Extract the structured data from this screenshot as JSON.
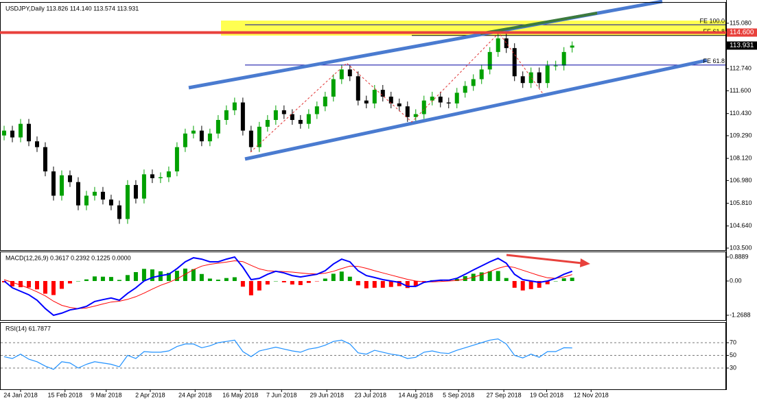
{
  "chart_data": [
    {
      "type": "candlestick",
      "legend": "USDJPY,Daily  113.826 114.140 113.574 113.931",
      "xlim": [
        -0.5,
        87.7
      ],
      "xticks": [
        {
          "value": 2,
          "label": "24 Jan 2018"
        },
        {
          "value": 7.4,
          "label": "15 Feb 2018"
        },
        {
          "value": 12.4,
          "label": "9 Mar 2018"
        },
        {
          "value": 17.75,
          "label": "2 Apr 2018"
        },
        {
          "value": 23.2,
          "label": "24 Apr 2018"
        },
        {
          "value": 28.7,
          "label": "16 May 2018"
        },
        {
          "value": 33.7,
          "label": "7 Jun 2018"
        },
        {
          "value": 39.2,
          "label": "29 Jun 2018"
        },
        {
          "value": 44.5,
          "label": "23 Jul 2018"
        },
        {
          "value": 50,
          "label": "14 Aug 2018"
        },
        {
          "value": 55.2,
          "label": "5 Sep 2018"
        },
        {
          "value": 60.7,
          "label": "27 Sep 2018"
        },
        {
          "value": 65.9,
          "label": "19 Oct 2018"
        },
        {
          "value": 71.3,
          "label": "12 Nov 2018"
        }
      ],
      "ylim": [
        103.394,
        116.136
      ],
      "yticks": [
        {
          "value": 115.08,
          "label": "115.080"
        },
        {
          "value": 112.74,
          "label": "112.740"
        },
        {
          "value": 111.6,
          "label": "111.600"
        },
        {
          "value": 110.43,
          "label": "110.430"
        },
        {
          "value": 109.29,
          "label": "109.290"
        },
        {
          "value": 108.12,
          "label": "108.120"
        },
        {
          "value": 106.98,
          "label": "106.980"
        },
        {
          "value": 105.81,
          "label": "105.810"
        },
        {
          "value": 104.64,
          "label": "104.640"
        },
        {
          "value": 103.5,
          "label": "103.500"
        }
      ],
      "up_color": "#00a000",
      "down_color": "#000000",
      "open": [
        109.3,
        109.55,
        109.2,
        109.9,
        109.0,
        108.7,
        107.45,
        106.2,
        107.25,
        106.9,
        105.7,
        106.2,
        106.4,
        106.0,
        105.7,
        105.0,
        106.75,
        106.05,
        107.3,
        107.1,
        107.15,
        107.45,
        108.7,
        109.4,
        109.55,
        109.0,
        109.4,
        110.1,
        110.6,
        111.0,
        109.55,
        108.7,
        109.75,
        110.1,
        110.6,
        110.4,
        110.1,
        109.9,
        110.4,
        110.8,
        111.3,
        112.2,
        112.7,
        112.35,
        111.1,
        110.95,
        111.65,
        111.3,
        110.95,
        110.8,
        110.25,
        110.4,
        111.1,
        111.3,
        111.0,
        110.95,
        111.5,
        111.85,
        112.2,
        112.7,
        113.6,
        114.3,
        113.8,
        112.35,
        112.0,
        112.55,
        112.0,
        112.9,
        112.9,
        113.826
      ],
      "high": [
        109.8,
        109.8,
        110.15,
        110.15,
        109.25,
        108.95,
        107.7,
        107.5,
        107.5,
        107.15,
        106.45,
        106.65,
        106.65,
        106.25,
        105.95,
        107.0,
        107.0,
        107.55,
        107.55,
        107.4,
        107.7,
        108.95,
        109.65,
        109.8,
        109.8,
        109.65,
        110.35,
        110.85,
        111.25,
        111.25,
        109.8,
        110.0,
        110.35,
        110.85,
        110.85,
        110.65,
        110.35,
        110.65,
        111.05,
        111.55,
        112.45,
        112.95,
        112.95,
        112.6,
        111.35,
        111.9,
        111.9,
        111.55,
        111.2,
        111.05,
        110.65,
        111.35,
        111.55,
        111.55,
        111.25,
        111.75,
        112.1,
        112.45,
        112.95,
        113.85,
        114.55,
        114.55,
        114.05,
        112.6,
        112.8,
        112.8,
        113.15,
        113.15,
        113.85,
        114.14
      ],
      "low": [
        109.05,
        108.95,
        108.95,
        108.75,
        108.45,
        107.2,
        105.95,
        105.95,
        106.65,
        105.45,
        105.45,
        105.95,
        105.75,
        105.45,
        104.75,
        104.75,
        105.8,
        105.8,
        106.85,
        106.85,
        106.9,
        107.2,
        108.45,
        109.15,
        108.75,
        108.75,
        109.15,
        109.85,
        110.35,
        109.3,
        108.45,
        108.45,
        109.5,
        109.85,
        110.15,
        109.85,
        109.65,
        109.65,
        110.15,
        110.55,
        111.05,
        111.95,
        112.1,
        110.85,
        110.7,
        110.7,
        111.05,
        110.7,
        110.55,
        110.0,
        110.0,
        110.15,
        110.85,
        110.75,
        110.7,
        110.7,
        111.25,
        111.6,
        111.95,
        112.45,
        113.35,
        113.55,
        112.1,
        111.75,
        111.75,
        111.75,
        111.75,
        112.65,
        112.65,
        113.574
      ],
      "close": [
        109.55,
        109.2,
        109.9,
        109.0,
        108.7,
        107.45,
        106.2,
        107.25,
        106.9,
        105.7,
        106.2,
        106.4,
        106.0,
        105.7,
        105.0,
        106.75,
        106.05,
        107.3,
        107.1,
        107.15,
        107.45,
        108.7,
        109.4,
        109.55,
        109.0,
        109.4,
        110.1,
        110.6,
        111.0,
        109.55,
        108.7,
        109.75,
        110.1,
        110.6,
        110.4,
        110.1,
        109.9,
        110.4,
        110.8,
        111.3,
        112.2,
        112.7,
        112.35,
        111.1,
        110.95,
        111.65,
        111.3,
        110.95,
        110.8,
        110.25,
        110.4,
        111.1,
        111.3,
        111.0,
        110.95,
        111.5,
        111.85,
        112.2,
        112.7,
        113.6,
        114.3,
        113.8,
        112.35,
        112.0,
        112.55,
        112.0,
        112.9,
        112.9,
        113.6,
        113.931
      ],
      "levels": [
        {
          "value": 115.0,
          "label": "FE 100.0",
          "color": "#0000a0"
        },
        {
          "value": 114.45,
          "label": "FE 61.8",
          "color": "#000000"
        },
        {
          "value": 112.93,
          "label": "FE 61.8",
          "color": "#0000a0"
        }
      ],
      "price_line": {
        "value": 114.6,
        "label": "114.600",
        "color": "#e8413c"
      }
    },
    {
      "type": "macd",
      "legend": "MACD(12,26,9) 0.3617 0.2392 0.1225 0.0000",
      "ylim": [
        -1.447,
        1.0666
      ],
      "yticks": [
        0.8889,
        {
          "value": 0,
          "label": "0.00"
        },
        -1.2688
      ],
      "macd": {
        "color": "#0000ff",
        "values": [
          0.0,
          -0.25,
          -0.38,
          -0.51,
          -0.71,
          -1.02,
          -1.27,
          -1.19,
          -1.07,
          -1.02,
          -0.94,
          -0.76,
          -0.69,
          -0.63,
          -0.71,
          -0.46,
          -0.25,
          0.0,
          0.13,
          0.2,
          0.25,
          0.46,
          0.71,
          0.86,
          0.81,
          0.71,
          0.71,
          0.81,
          0.89,
          0.51,
          0.05,
          0.1,
          0.25,
          0.36,
          0.3,
          0.2,
          0.15,
          0.2,
          0.25,
          0.38,
          0.63,
          0.81,
          0.71,
          0.38,
          0.2,
          0.13,
          0.05,
          0.0,
          -0.05,
          -0.2,
          -0.2,
          -0.05,
          0.0,
          0.03,
          0.03,
          0.1,
          0.25,
          0.41,
          0.56,
          0.71,
          0.84,
          0.66,
          0.25,
          0.05,
          0.0,
          -0.05,
          0.0,
          0.1,
          0.25,
          0.3617
        ]
      },
      "signal": {
        "color": "#ff0000",
        "values": [
          0.05,
          -0.05,
          -0.15,
          -0.27,
          -0.4,
          -0.55,
          -0.75,
          -0.9,
          -0.98,
          -1.02,
          -1.0,
          -0.93,
          -0.85,
          -0.78,
          -0.75,
          -0.68,
          -0.58,
          -0.45,
          -0.3,
          -0.16,
          -0.05,
          0.08,
          0.25,
          0.42,
          0.55,
          0.62,
          0.66,
          0.7,
          0.75,
          0.72,
          0.58,
          0.45,
          0.38,
          0.36,
          0.35,
          0.33,
          0.3,
          0.27,
          0.26,
          0.29,
          0.36,
          0.46,
          0.55,
          0.54,
          0.47,
          0.38,
          0.3,
          0.22,
          0.14,
          0.06,
          0.0,
          -0.03,
          -0.03,
          -0.02,
          0.0,
          0.02,
          0.07,
          0.14,
          0.24,
          0.35,
          0.47,
          0.55,
          0.5,
          0.4,
          0.3,
          0.2,
          0.12,
          0.1,
          0.15,
          0.2392
        ]
      },
      "histogram": {
        "up_color": "#00a000",
        "down_color": "#ff0000",
        "values": [
          -0.05,
          -0.2,
          -0.23,
          -0.24,
          -0.31,
          -0.47,
          -0.52,
          -0.29,
          -0.09,
          0.0,
          0.06,
          0.17,
          0.16,
          0.15,
          0.04,
          0.22,
          0.33,
          0.45,
          0.43,
          0.36,
          0.3,
          0.38,
          0.46,
          0.44,
          0.26,
          0.09,
          0.05,
          0.11,
          0.14,
          -0.21,
          -0.53,
          -0.35,
          -0.13,
          0.0,
          -0.05,
          -0.13,
          -0.15,
          -0.07,
          -0.01,
          0.09,
          0.27,
          0.35,
          0.16,
          -0.16,
          -0.27,
          -0.25,
          -0.25,
          -0.22,
          -0.19,
          -0.26,
          -0.2,
          -0.02,
          0.03,
          0.05,
          0.03,
          0.08,
          0.18,
          0.27,
          0.32,
          0.36,
          0.37,
          0.11,
          -0.25,
          -0.35,
          -0.3,
          -0.25,
          -0.12,
          0.0,
          0.1,
          0.1225
        ]
      }
    },
    {
      "type": "line",
      "legend": "RSI(14) 61.7877",
      "ylim": [
        -3.5,
        101.35
      ],
      "yticks": [
        70,
        50,
        30
      ],
      "grid": true,
      "color": "#1e90ff",
      "values": [
        48,
        45,
        52,
        44,
        40,
        33,
        28,
        40,
        38,
        30,
        36,
        40,
        38,
        36,
        32,
        50,
        45,
        56,
        55,
        55,
        57,
        64,
        68,
        68,
        62,
        65,
        70,
        72,
        74,
        56,
        48,
        57,
        60,
        63,
        60,
        57,
        55,
        60,
        62,
        66,
        72,
        74,
        68,
        54,
        52,
        58,
        55,
        52,
        50,
        45,
        47,
        55,
        57,
        54,
        53,
        58,
        62,
        66,
        70,
        74,
        76,
        68,
        50,
        46,
        52,
        47,
        56,
        56,
        62,
        61.7877
      ]
    }
  ]
}
